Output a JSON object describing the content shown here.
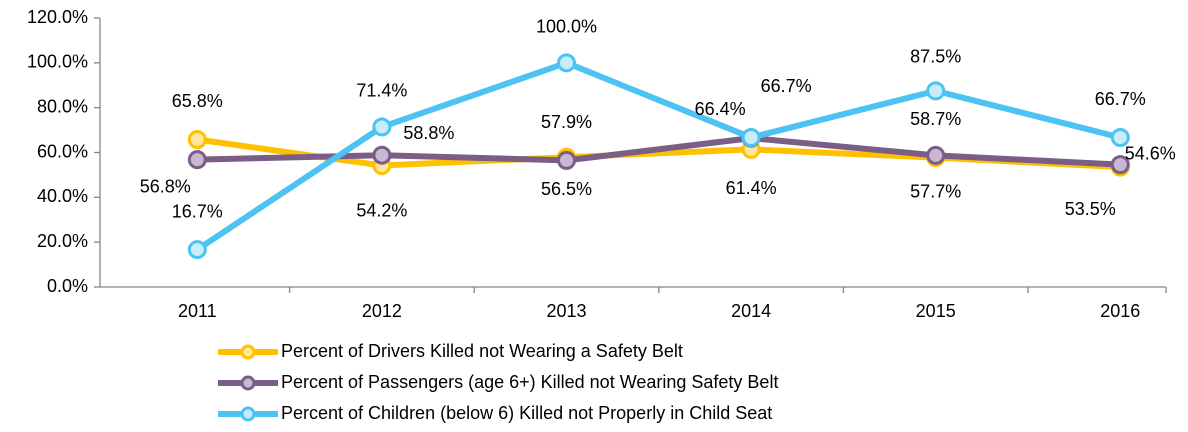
{
  "chart_data": {
    "type": "line",
    "categories": [
      "2011",
      "2012",
      "2013",
      "2014",
      "2015",
      "2016"
    ],
    "series": [
      {
        "name": "Percent of Drivers Killed not Wearing a Safety Belt",
        "color": "#ffc000",
        "values": [
          65.8,
          54.2,
          57.9,
          61.4,
          57.7,
          53.5
        ],
        "value_labels": [
          "65.8%",
          "54.2%",
          "57.9%",
          "61.4%",
          "57.7%",
          "53.5%"
        ]
      },
      {
        "name": "Percent of Passengers (age 6+) Killed not Wearing Safety Belt",
        "color": "#7a5e86",
        "values": [
          56.8,
          58.8,
          56.5,
          66.4,
          58.7,
          54.6
        ],
        "value_labels": [
          "56.8%",
          "58.8%",
          "56.5%",
          "66.4%",
          "58.7%",
          "54.6%"
        ]
      },
      {
        "name": "Percent of Children (below 6) Killed not Properly in Child Seat",
        "color": "#4cc3f2",
        "values": [
          16.7,
          71.4,
          100.0,
          66.7,
          87.5,
          66.7
        ],
        "value_labels": [
          "16.7%",
          "71.4%",
          "100.0%",
          "66.7%",
          "87.5%",
          "66.7%"
        ]
      }
    ],
    "ylim": [
      0,
      120
    ],
    "yticks": [
      {
        "value": 0,
        "label": "0.0%"
      },
      {
        "value": 20,
        "label": "20.0%"
      },
      {
        "value": 40,
        "label": "40.0%"
      },
      {
        "value": 60,
        "label": "60.0%"
      },
      {
        "value": 80,
        "label": "80.0%"
      },
      {
        "value": 100,
        "label": "100.0%"
      },
      {
        "value": 120,
        "label": "120.0%"
      }
    ],
    "legend": "bottom"
  }
}
